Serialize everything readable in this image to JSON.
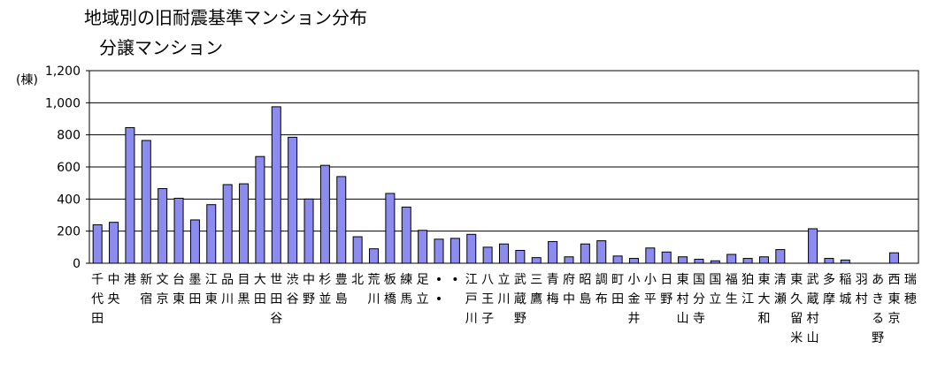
{
  "title": "地域別の旧耐震基準マンション分布",
  "subtitle": "分譲マンション",
  "chart_data": {
    "type": "bar",
    "ylabel": "(棟)",
    "ylim": [
      0,
      1200
    ],
    "yticks": [
      0,
      200,
      400,
      600,
      800,
      1000,
      1200
    ],
    "ytick_labels": [
      "0",
      "200",
      "400",
      "600",
      "800",
      "1,000",
      "1,200"
    ],
    "grid": true,
    "bar_color": "#8c8cf0",
    "categories": [
      "千代田",
      "中央",
      "港",
      "新宿",
      "文京",
      "台東",
      "墨田",
      "江東",
      "品川",
      "目黒",
      "大田",
      "世田谷",
      "渋谷",
      "中野",
      "杉並",
      "豊島",
      "北",
      "荒川",
      "板橋",
      "練馬",
      "足立",
      "••",
      "•",
      "江戸川",
      "八王子",
      "立川",
      "武蔵野",
      "三鷹",
      "青梅",
      "府中",
      "昭島",
      "調布",
      "町田",
      "小金井",
      "小平",
      "日野",
      "東村山",
      "国分寺",
      "国立",
      "福生",
      "狛江",
      "東大和",
      "清瀬",
      "東久留米",
      "武蔵村山",
      "多摩",
      "稲城",
      "羽村",
      "あきる野",
      "西東京",
      "瑞穂"
    ],
    "values": [
      240,
      255,
      845,
      765,
      465,
      405,
      270,
      365,
      490,
      495,
      665,
      975,
      785,
      400,
      610,
      540,
      165,
      90,
      435,
      350,
      205,
      150,
      155,
      180,
      100,
      120,
      80,
      35,
      135,
      40,
      120,
      140,
      45,
      30,
      95,
      70,
      40,
      25,
      15,
      55,
      30,
      40,
      85,
      0,
      215,
      30,
      20,
      0,
      0,
      65,
      0
    ]
  }
}
